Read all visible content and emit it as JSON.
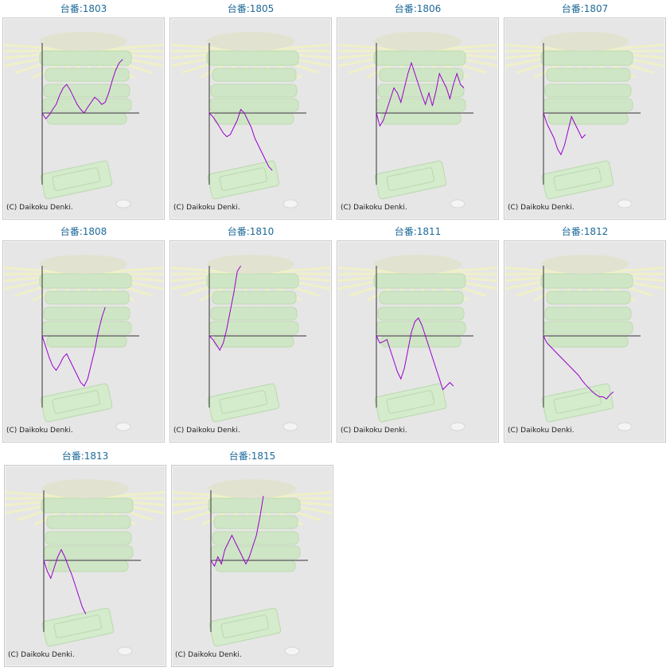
{
  "copyright": "(C) Daikoku Denki.",
  "colors": {
    "title": "#1d6a99",
    "line": "#9900cc",
    "axis": "#333333",
    "panel_bg": "#e6e6e6"
  },
  "chart_data": [
    {
      "type": "line",
      "title": "台番:1803",
      "values": [
        0,
        -8,
        -3,
        5,
        12,
        25,
        35,
        40,
        32,
        22,
        12,
        5,
        0,
        8,
        15,
        22,
        18,
        12,
        15,
        28,
        45,
        60,
        70,
        75
      ]
    },
    {
      "type": "line",
      "title": "台番:1805",
      "values": [
        0,
        -5,
        -12,
        -20,
        -28,
        -33,
        -30,
        -20,
        -10,
        5,
        0,
        -10,
        -20,
        -35,
        -45,
        -55,
        -65,
        -75,
        -80
      ]
    },
    {
      "type": "line",
      "title": "台番:1806",
      "values": [
        0,
        -18,
        -10,
        5,
        20,
        35,
        28,
        15,
        35,
        55,
        70,
        55,
        40,
        25,
        12,
        28,
        10,
        30,
        55,
        45,
        35,
        20,
        40,
        55,
        40,
        35
      ]
    },
    {
      "type": "line",
      "title": "台番:1807",
      "values": [
        0,
        -15,
        -25,
        -35,
        -50,
        -58,
        -45,
        -25,
        -5,
        -15,
        -25,
        -35,
        -30
      ]
    },
    {
      "type": "line",
      "title": "台番:1808",
      "values": [
        0,
        -15,
        -30,
        -42,
        -48,
        -40,
        -30,
        -25,
        -35,
        -45,
        -55,
        -65,
        -70,
        -60,
        -40,
        -20,
        5,
        25,
        40
      ]
    },
    {
      "type": "line",
      "title": "台番:1810",
      "values": [
        0,
        -5,
        -12,
        -20,
        -10,
        10,
        35,
        60,
        90,
        120
      ]
    },
    {
      "type": "line",
      "title": "台番:1811",
      "values": [
        0,
        -10,
        -8,
        -5,
        -20,
        -35,
        -50,
        -60,
        -45,
        -20,
        5,
        20,
        25,
        15,
        0,
        -15,
        -30,
        -45,
        -60,
        -75,
        -70,
        -65,
        -70
      ]
    },
    {
      "type": "line",
      "title": "台番:1812",
      "values": [
        0,
        -10,
        -15,
        -20,
        -25,
        -30,
        -35,
        -40,
        -45,
        -50,
        -55,
        -62,
        -68,
        -73,
        -78,
        -82,
        -85,
        -85,
        -88,
        -82,
        -78
      ]
    },
    {
      "type": "line",
      "title": "台番:1813",
      "values": [
        0,
        -15,
        -25,
        -10,
        5,
        15,
        5,
        -8,
        -20,
        -35,
        -50,
        -65,
        -75
      ]
    },
    {
      "type": "line",
      "title": "台番:1815",
      "values": [
        0,
        -8,
        5,
        -5,
        15,
        25,
        35,
        25,
        15,
        5,
        -5,
        5,
        20,
        35,
        60,
        90
      ]
    }
  ]
}
